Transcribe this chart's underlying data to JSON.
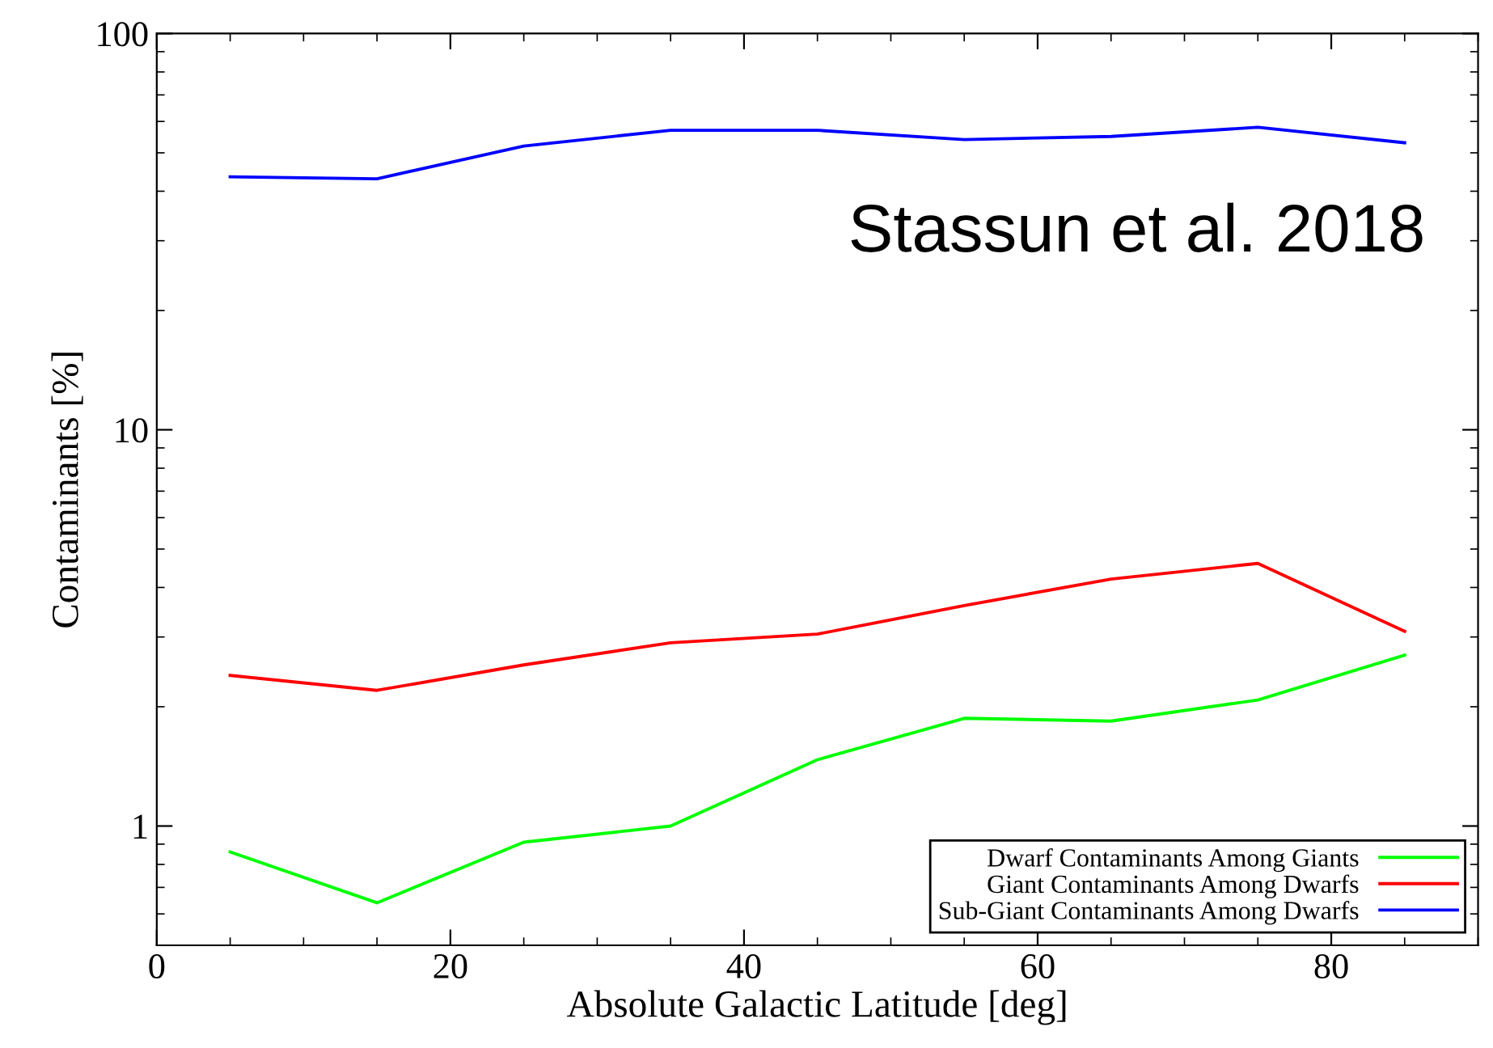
{
  "chart_data": {
    "type": "line",
    "xlabel": "Absolute Galactic Latitude [deg]",
    "ylabel": "Contaminants [%]",
    "x": [
      5,
      15,
      25,
      35,
      45,
      55,
      65,
      75,
      85
    ],
    "series": [
      {
        "name": "Dwarf Contaminants Among Giants",
        "color": "#00ff00",
        "values": [
          0.86,
          0.64,
          0.91,
          1.0,
          1.47,
          1.87,
          1.84,
          2.08,
          2.7
        ]
      },
      {
        "name": "Giant Contaminants Among Dwarfs",
        "color": "#ff0000",
        "values": [
          2.4,
          2.2,
          2.55,
          2.9,
          3.05,
          3.6,
          4.2,
          4.6,
          3.1
        ]
      },
      {
        "name": "Sub-Giant Contaminants Among Dwarfs",
        "color": "#0000ff",
        "values": [
          43.5,
          43,
          52,
          57,
          57,
          54,
          55,
          58,
          53
        ]
      }
    ],
    "log": "y",
    "xlim": [
      0,
      90
    ],
    "xticks": [
      0,
      20,
      40,
      60,
      80
    ],
    "ylim": [
      0.5,
      100
    ],
    "yticks": [
      1,
      10,
      100
    ],
    "grid": false,
    "legend": "bottom right",
    "marker": "none",
    "line_style": "solid",
    "annotations": [
      "Stassun et al. 2018"
    ]
  }
}
